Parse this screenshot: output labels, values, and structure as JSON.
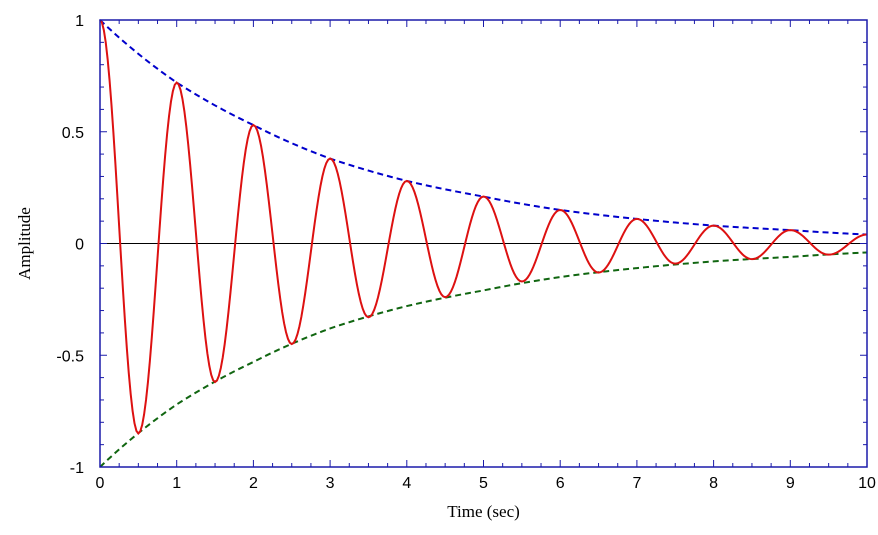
{
  "chart_data": {
    "type": "line",
    "title": "",
    "xlabel": "Time (sec)",
    "ylabel": "Amplitude",
    "xlim": [
      0,
      10
    ],
    "ylim": [
      -1,
      1
    ],
    "x_ticks": [
      "0",
      "1",
      "2",
      "3",
      "4",
      "5",
      "6",
      "7",
      "8",
      "9",
      "10"
    ],
    "y_ticks": [
      "-1",
      "-0.5",
      "0",
      "0.5",
      "1"
    ],
    "grid": false,
    "legend": "none",
    "series": [
      {
        "color": "#dd1111",
        "style": "solid",
        "x": [
          0,
          0.5,
          1,
          1.5,
          2,
          2.5,
          3,
          3.5,
          4,
          4.5,
          5,
          5.5,
          6,
          6.5,
          7,
          7.5,
          8,
          8.5,
          9,
          9.5,
          10
        ],
        "values": [
          1,
          -0.85,
          0.72,
          -0.62,
          0.53,
          -0.45,
          0.38,
          -0.33,
          0.28,
          -0.24,
          0.21,
          -0.17,
          0.15,
          -0.13,
          0.11,
          -0.09,
          0.08,
          -0.07,
          0.06,
          -0.05,
          0.04
        ]
      },
      {
        "color": "#0000cc",
        "style": "dashed",
        "x": [
          0,
          1,
          2,
          3,
          4,
          5,
          6,
          7,
          8,
          9,
          10
        ],
        "values": [
          1,
          0.72,
          0.53,
          0.38,
          0.28,
          0.21,
          0.15,
          0.11,
          0.08,
          0.06,
          0.04
        ]
      },
      {
        "color": "#116611",
        "style": "dashed",
        "x": [
          0,
          1,
          2,
          3,
          4,
          5,
          6,
          7,
          8,
          9,
          10
        ],
        "values": [
          -1,
          -0.72,
          -0.53,
          -0.38,
          -0.28,
          -0.21,
          -0.15,
          -0.11,
          -0.08,
          -0.06,
          -0.04
        ]
      }
    ]
  }
}
